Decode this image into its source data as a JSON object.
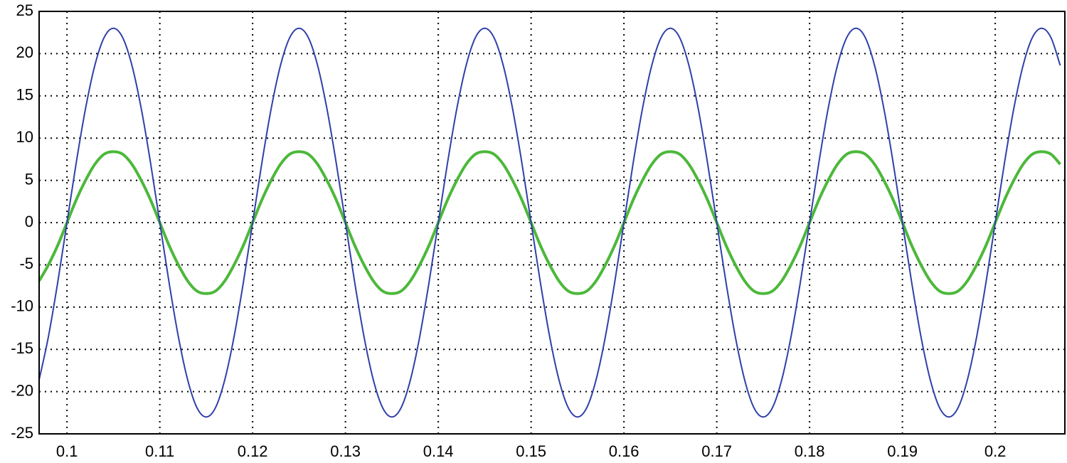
{
  "chart_data": {
    "type": "line",
    "x": [
      0.097,
      0.098,
      0.099,
      0.1,
      0.101,
      0.102,
      0.103,
      0.104,
      0.105,
      0.106,
      0.107,
      0.108,
      0.109,
      0.11,
      0.111,
      0.112,
      0.113,
      0.114,
      0.115,
      0.116,
      0.117,
      0.118,
      0.119,
      0.12,
      0.121,
      0.122,
      0.123,
      0.124,
      0.125,
      0.126,
      0.127,
      0.128,
      0.129,
      0.13,
      0.131,
      0.132,
      0.133,
      0.134,
      0.135,
      0.136,
      0.137,
      0.138,
      0.139,
      0.14,
      0.141,
      0.142,
      0.143,
      0.144,
      0.145,
      0.146,
      0.147,
      0.148,
      0.149,
      0.15,
      0.151,
      0.152,
      0.153,
      0.154,
      0.155,
      0.156,
      0.157,
      0.158,
      0.159,
      0.16,
      0.161,
      0.162,
      0.163,
      0.164,
      0.165,
      0.166,
      0.167,
      0.168,
      0.169,
      0.17,
      0.171,
      0.172,
      0.173,
      0.174,
      0.175,
      0.176,
      0.177,
      0.178,
      0.179,
      0.18,
      0.181,
      0.182,
      0.183,
      0.184,
      0.185,
      0.186,
      0.187,
      0.188,
      0.189,
      0.19,
      0.191,
      0.192,
      0.193,
      0.194,
      0.195,
      0.196,
      0.197,
      0.198,
      0.199,
      0.2,
      0.201,
      0.202,
      0.203,
      0.204,
      0.205,
      0.206,
      0.207
    ],
    "series": [
      {
        "color": "#3040a8",
        "values": [
          -18.6,
          -13.5,
          -7.1,
          0,
          7.1,
          13.5,
          18.6,
          21.9,
          23,
          21.9,
          18.6,
          13.5,
          7.1,
          0,
          -7.1,
          -13.5,
          -18.6,
          -21.9,
          -23,
          -21.9,
          -18.6,
          -13.5,
          -7.1,
          0,
          7.1,
          13.5,
          18.6,
          21.9,
          23,
          21.9,
          18.6,
          13.5,
          7.1,
          0,
          -7.1,
          -13.5,
          -18.6,
          -21.9,
          -23,
          -21.9,
          -18.6,
          -13.5,
          -7.1,
          0,
          7.1,
          13.5,
          18.6,
          21.9,
          23,
          21.9,
          18.6,
          13.5,
          7.1,
          0,
          -7.1,
          -13.5,
          -18.6,
          -21.9,
          -23,
          -21.9,
          -18.6,
          -13.5,
          -7.1,
          0,
          7.1,
          13.5,
          18.6,
          21.9,
          23,
          21.9,
          18.6,
          13.5,
          7.1,
          0,
          -7.1,
          -13.5,
          -18.6,
          -21.9,
          -23,
          -21.9,
          -18.6,
          -13.5,
          -7.1,
          0,
          7.1,
          13.5,
          18.6,
          21.9,
          23,
          21.9,
          18.6,
          13.5,
          7.1,
          0,
          -7.1,
          -13.5,
          -18.6,
          -21.9,
          -23,
          -21.9,
          -18.6,
          -13.5,
          -7.1,
          0,
          7.1,
          13.5,
          18.6,
          21.9,
          23,
          21.9,
          18.6
        ]
      },
      {
        "color": "#4cb83a",
        "values": [
          -6.9,
          -5.0,
          -2.7,
          0,
          2.7,
          5.0,
          6.9,
          8.1,
          8.4,
          8.1,
          6.9,
          5.0,
          2.7,
          0,
          -2.7,
          -5.0,
          -6.9,
          -8.1,
          -8.4,
          -8.1,
          -6.9,
          -5.0,
          -2.7,
          0,
          2.7,
          5.0,
          6.9,
          8.1,
          8.4,
          8.1,
          6.9,
          5.0,
          2.7,
          0,
          -2.7,
          -5.0,
          -6.9,
          -8.1,
          -8.4,
          -8.1,
          -6.9,
          -5.0,
          -2.7,
          0,
          2.7,
          5.0,
          6.9,
          8.1,
          8.4,
          8.1,
          6.9,
          5.0,
          2.7,
          0,
          -2.7,
          -5.0,
          -6.9,
          -8.1,
          -8.4,
          -8.1,
          -6.9,
          -5.0,
          -2.7,
          0,
          2.7,
          5.0,
          6.9,
          8.1,
          8.4,
          8.1,
          6.9,
          5.0,
          2.7,
          0,
          -2.7,
          -5.0,
          -6.9,
          -8.1,
          -8.4,
          -8.1,
          -6.9,
          -5.0,
          -2.7,
          0,
          2.7,
          5.0,
          6.9,
          8.1,
          8.4,
          8.1,
          6.9,
          5.0,
          2.7,
          0,
          -2.7,
          -5.0,
          -6.9,
          -8.1,
          -8.4,
          -8.1,
          -6.9,
          -5.0,
          -2.7,
          0,
          2.7,
          5.0,
          6.9,
          8.1,
          8.4,
          8.1,
          6.9
        ]
      }
    ],
    "xlim": [
      0.097,
      0.2075
    ],
    "xticks": [
      0.1,
      0.11,
      0.12,
      0.13,
      0.14,
      0.15,
      0.16,
      0.17,
      0.18,
      0.19,
      0.2
    ],
    "ylim": [
      -25,
      25
    ],
    "yticks": [
      -25,
      -20,
      -15,
      -10,
      -5,
      0,
      5,
      10,
      15,
      20,
      25
    ],
    "grid": true
  }
}
